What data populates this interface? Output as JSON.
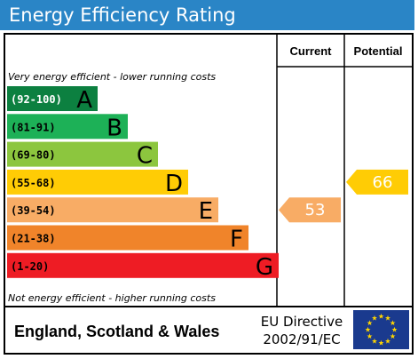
{
  "title": "Energy Efficiency Rating",
  "chart_data": {
    "type": "bar",
    "columns": {
      "current": "Current",
      "potential": "Potential"
    },
    "top_note": "Very energy efficient - lower running costs",
    "bottom_note": "Not energy efficient - higher running costs",
    "bands": [
      {
        "range": "(92-100)",
        "letter": "A",
        "color": "#0c8040",
        "range_color": "#ffffff"
      },
      {
        "range": "(81-91)",
        "letter": "B",
        "color": "#1db157",
        "range_color": "#000000"
      },
      {
        "range": "(69-80)",
        "letter": "C",
        "color": "#8cc63e",
        "range_color": "#000000"
      },
      {
        "range": "(55-68)",
        "letter": "D",
        "color": "#ffcc05",
        "range_color": "#000000"
      },
      {
        "range": "(39-54)",
        "letter": "E",
        "color": "#f8ac65",
        "range_color": "#000000"
      },
      {
        "range": "(21-38)",
        "letter": "F",
        "color": "#f0842a",
        "range_color": "#000000"
      },
      {
        "range": "(1-20)",
        "letter": "G",
        "color": "#ee1c24",
        "range_color": "#000000"
      }
    ],
    "current": {
      "value": 53,
      "band": "E",
      "color": "#f8ac65"
    },
    "potential": {
      "value": 66,
      "band": "D",
      "color": "#ffcc05"
    }
  },
  "footer": {
    "region": "England, Scotland & Wales",
    "directive_line1": "EU Directive",
    "directive_line2": "2002/91/EC",
    "flag_color": "#1a3a8e",
    "star_color": "#ffd500"
  }
}
